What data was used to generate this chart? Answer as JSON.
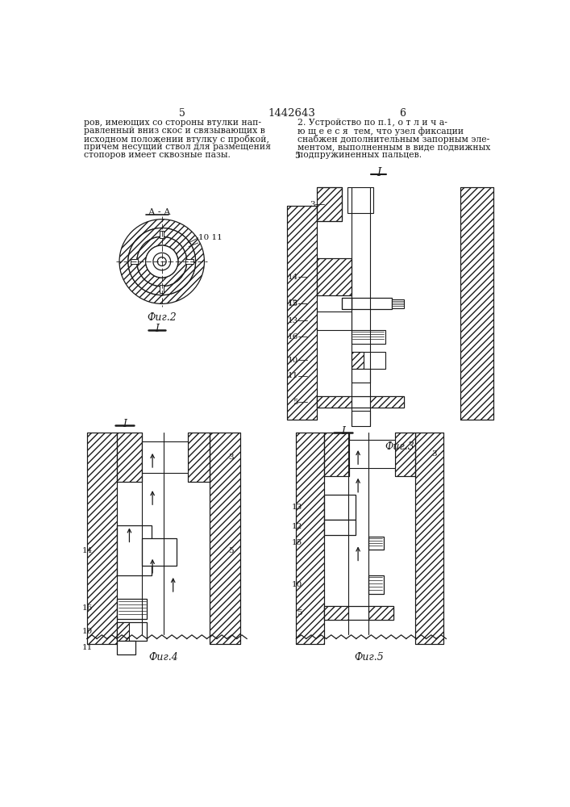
{
  "page_number_left": "5",
  "page_number_center": "1442643",
  "page_number_right": "6",
  "text_left_lines": [
    "ров, имеющих со стороны втулки нап-",
    "равленный вниз скос и связывающих в",
    "исходном положении втулку с пробкой,",
    "причем несущий ствол для размещения",
    "стопоров имеет сквозные пазы."
  ],
  "text_right_lines": [
    "2. Устройство по п.1, о т л и ч а-",
    "ю щ е е с я  тем, что узел фиксации",
    "снабжен дополнительным запорным эле-",
    "ментом, выполненным в виде подвижных",
    "подпружиненных пальцев."
  ],
  "fig2_label": "Фиг.2",
  "fig3_label": "Фиг.3",
  "fig4_label": "Фиг.4",
  "fig5_label": "Фиг.5",
  "bg_color": "#ffffff",
  "line_color": "#1a1a1a"
}
